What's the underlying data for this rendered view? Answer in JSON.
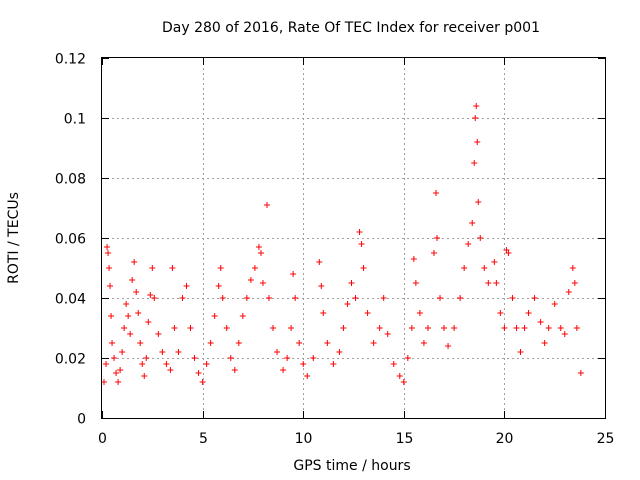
{
  "chart_data": {
    "type": "scatter",
    "title": "Day 280 of 2016, Rate Of TEC Index for receiver p001",
    "xlabel": "GPS time / hours",
    "ylabel": "ROTI / TECUs",
    "xlim": [
      0,
      25
    ],
    "ylim": [
      0,
      0.12
    ],
    "x_ticks": [
      0,
      5,
      10,
      15,
      20,
      25
    ],
    "x_tick_labels": [
      "0",
      "5",
      "10",
      "15",
      "20",
      "25"
    ],
    "y_ticks": [
      0,
      0.02,
      0.04,
      0.06,
      0.08,
      0.1,
      0.12
    ],
    "y_tick_labels": [
      "0",
      "0.02",
      "0.04",
      "0.06",
      "0.08",
      "0.1",
      "0.12"
    ],
    "grid": true,
    "marker": "plus",
    "color": "#ff0000",
    "series": [
      {
        "name": "ROTI",
        "points": [
          [
            0.1,
            0.012
          ],
          [
            0.2,
            0.018
          ],
          [
            0.25,
            0.057
          ],
          [
            0.3,
            0.055
          ],
          [
            0.35,
            0.05
          ],
          [
            0.4,
            0.044
          ],
          [
            0.45,
            0.034
          ],
          [
            0.5,
            0.025
          ],
          [
            0.6,
            0.02
          ],
          [
            0.7,
            0.015
          ],
          [
            0.8,
            0.012
          ],
          [
            0.9,
            0.016
          ],
          [
            1.0,
            0.022
          ],
          [
            1.1,
            0.03
          ],
          [
            1.2,
            0.038
          ],
          [
            1.3,
            0.034
          ],
          [
            1.4,
            0.028
          ],
          [
            1.5,
            0.046
          ],
          [
            1.6,
            0.052
          ],
          [
            1.7,
            0.042
          ],
          [
            1.8,
            0.035
          ],
          [
            1.9,
            0.025
          ],
          [
            2.0,
            0.018
          ],
          [
            2.1,
            0.014
          ],
          [
            2.2,
            0.02
          ],
          [
            2.3,
            0.032
          ],
          [
            2.4,
            0.041
          ],
          [
            2.5,
            0.05
          ],
          [
            2.6,
            0.04
          ],
          [
            2.8,
            0.028
          ],
          [
            3.0,
            0.022
          ],
          [
            3.2,
            0.018
          ],
          [
            3.4,
            0.016
          ],
          [
            3.5,
            0.05
          ],
          [
            3.6,
            0.03
          ],
          [
            3.8,
            0.022
          ],
          [
            4.0,
            0.04
          ],
          [
            4.2,
            0.044
          ],
          [
            4.4,
            0.03
          ],
          [
            4.6,
            0.02
          ],
          [
            4.8,
            0.015
          ],
          [
            5.0,
            0.012
          ],
          [
            5.2,
            0.018
          ],
          [
            5.4,
            0.025
          ],
          [
            5.6,
            0.034
          ],
          [
            5.8,
            0.044
          ],
          [
            5.9,
            0.05
          ],
          [
            6.0,
            0.04
          ],
          [
            6.2,
            0.03
          ],
          [
            6.4,
            0.02
          ],
          [
            6.6,
            0.016
          ],
          [
            6.8,
            0.025
          ],
          [
            7.0,
            0.034
          ],
          [
            7.2,
            0.04
          ],
          [
            7.4,
            0.046
          ],
          [
            7.6,
            0.05
          ],
          [
            7.8,
            0.057
          ],
          [
            7.9,
            0.055
          ],
          [
            8.0,
            0.045
          ],
          [
            8.2,
            0.071
          ],
          [
            8.3,
            0.04
          ],
          [
            8.5,
            0.03
          ],
          [
            8.7,
            0.022
          ],
          [
            9.0,
            0.016
          ],
          [
            9.2,
            0.02
          ],
          [
            9.4,
            0.03
          ],
          [
            9.5,
            0.048
          ],
          [
            9.6,
            0.04
          ],
          [
            9.8,
            0.025
          ],
          [
            10.0,
            0.018
          ],
          [
            10.2,
            0.014
          ],
          [
            10.5,
            0.02
          ],
          [
            10.8,
            0.052
          ],
          [
            10.9,
            0.044
          ],
          [
            11.0,
            0.035
          ],
          [
            11.2,
            0.025
          ],
          [
            11.5,
            0.018
          ],
          [
            11.8,
            0.022
          ],
          [
            12.0,
            0.03
          ],
          [
            12.2,
            0.038
          ],
          [
            12.4,
            0.045
          ],
          [
            12.6,
            0.04
          ],
          [
            12.8,
            0.062
          ],
          [
            12.9,
            0.058
          ],
          [
            13.0,
            0.05
          ],
          [
            13.2,
            0.035
          ],
          [
            13.5,
            0.025
          ],
          [
            13.8,
            0.03
          ],
          [
            14.0,
            0.04
          ],
          [
            14.2,
            0.028
          ],
          [
            14.5,
            0.018
          ],
          [
            14.8,
            0.014
          ],
          [
            15.0,
            0.012
          ],
          [
            15.2,
            0.02
          ],
          [
            15.4,
            0.03
          ],
          [
            15.5,
            0.053
          ],
          [
            15.6,
            0.045
          ],
          [
            15.8,
            0.035
          ],
          [
            16.0,
            0.025
          ],
          [
            16.2,
            0.03
          ],
          [
            16.5,
            0.055
          ],
          [
            16.6,
            0.075
          ],
          [
            16.65,
            0.06
          ],
          [
            16.8,
            0.04
          ],
          [
            17.0,
            0.03
          ],
          [
            17.2,
            0.024
          ],
          [
            17.5,
            0.03
          ],
          [
            17.8,
            0.04
          ],
          [
            18.0,
            0.05
          ],
          [
            18.2,
            0.058
          ],
          [
            18.4,
            0.065
          ],
          [
            18.5,
            0.085
          ],
          [
            18.55,
            0.1
          ],
          [
            18.6,
            0.104
          ],
          [
            18.65,
            0.092
          ],
          [
            18.7,
            0.072
          ],
          [
            18.8,
            0.06
          ],
          [
            19.0,
            0.05
          ],
          [
            19.2,
            0.045
          ],
          [
            19.5,
            0.052
          ],
          [
            19.6,
            0.045
          ],
          [
            19.8,
            0.035
          ],
          [
            20.0,
            0.03
          ],
          [
            20.1,
            0.056
          ],
          [
            20.2,
            0.055
          ],
          [
            20.4,
            0.04
          ],
          [
            20.6,
            0.03
          ],
          [
            20.8,
            0.022
          ],
          [
            21.0,
            0.03
          ],
          [
            21.2,
            0.035
          ],
          [
            21.5,
            0.04
          ],
          [
            21.8,
            0.032
          ],
          [
            22.0,
            0.025
          ],
          [
            22.2,
            0.03
          ],
          [
            22.5,
            0.038
          ],
          [
            22.8,
            0.03
          ],
          [
            23.0,
            0.028
          ],
          [
            23.2,
            0.042
          ],
          [
            23.4,
            0.05
          ],
          [
            23.5,
            0.045
          ],
          [
            23.6,
            0.03
          ],
          [
            23.8,
            0.015
          ]
        ]
      }
    ]
  }
}
